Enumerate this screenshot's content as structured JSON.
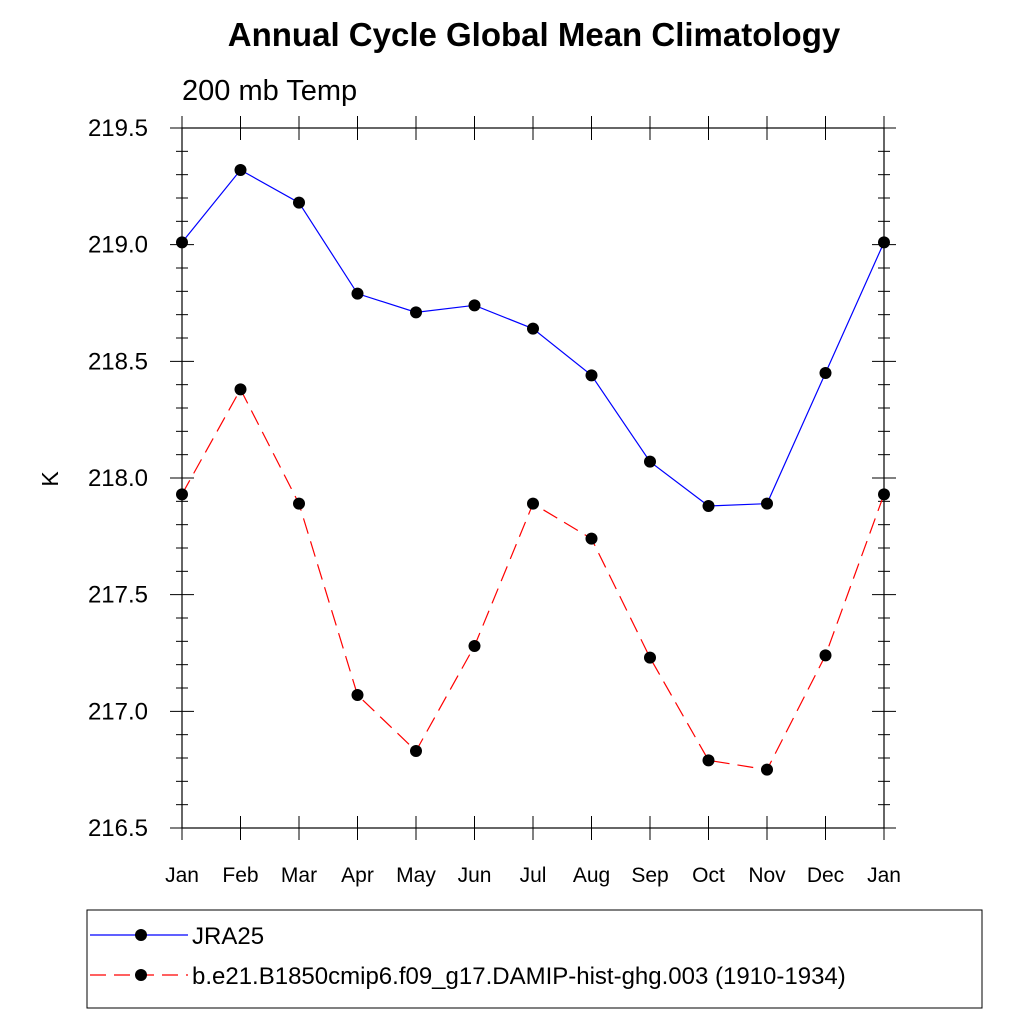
{
  "chart_data": {
    "type": "line",
    "title": "Annual Cycle Global Mean Climatology",
    "subtitle": "200 mb Temp",
    "xlabel": "",
    "ylabel": "K",
    "categories": [
      "Jan",
      "Feb",
      "Mar",
      "Apr",
      "May",
      "Jun",
      "Jul",
      "Aug",
      "Sep",
      "Oct",
      "Nov",
      "Dec",
      "Jan"
    ],
    "ylim": [
      216.5,
      219.5
    ],
    "yticks": [
      "216.5",
      "217.0",
      "217.5",
      "218.0",
      "218.5",
      "219.0",
      "219.5"
    ],
    "grid": false,
    "legend_position": "bottom",
    "series": [
      {
        "name": "JRA25",
        "color": "#0000ff",
        "dashed": false,
        "values": [
          219.01,
          219.32,
          219.18,
          218.79,
          218.71,
          218.74,
          218.64,
          218.44,
          218.07,
          217.88,
          217.89,
          218.45,
          219.01
        ]
      },
      {
        "name": "b.e21.B1850cmip6.f09_g17.DAMIP-hist-ghg.003 (1910-1934)",
        "color": "#ff0000",
        "dashed": true,
        "values": [
          217.93,
          218.38,
          217.89,
          217.07,
          216.83,
          217.28,
          217.89,
          217.74,
          217.23,
          216.79,
          216.75,
          217.24,
          217.93
        ]
      }
    ]
  }
}
